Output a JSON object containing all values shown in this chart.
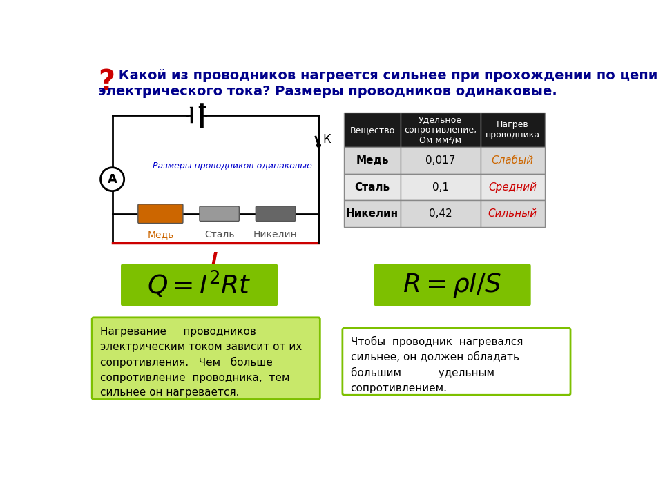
{
  "bg_color": "#ffffff",
  "title_question": "?",
  "title_text_line1": " Какой из проводников нагреется сильнее при прохождении по цепи",
  "title_text_line2": "электрического тока? Размеры проводников одинаковые.",
  "title_color": "#00008B",
  "question_color": "#cc0000",
  "circuit_label": "Размеры проводников одинаковые.",
  "circuit_label_color": "#0000cc",
  "conductor_labels": [
    "Медь",
    "Сталь",
    "Никелин"
  ],
  "conductor_colors": [
    "#cc6600",
    "#999999",
    "#666666"
  ],
  "current_label": "I",
  "current_color": "#cc0000",
  "ammeter_label": "А",
  "key_label": "К",
  "table_header_bg": "#1a1a1a",
  "table_header_color": "#ffffff",
  "table_col1": "Вещество",
  "table_col2": "Удельное\nсопротивление,\nОм мм²/м",
  "table_col3": "Нагрев\nпроводника",
  "table_rows": [
    [
      "Медь",
      "0,017",
      "Слабый"
    ],
    [
      "Сталь",
      "0,1",
      "Средний"
    ],
    [
      "Никелин",
      "0,42",
      "Сильный"
    ]
  ],
  "table_heat_colors": [
    "#cc6600",
    "#cc0000",
    "#cc0000"
  ],
  "row_bg_even": "#d8d8d8",
  "row_bg_odd": "#e8e8e8",
  "formula_bg": "#7dc000",
  "formula_color": "#000000",
  "box1_text": "Нагревание     проводников\nэлектрическим током зависит от их\nсопротивления.   Чем   больше\nсопротивление  проводника,  тем\nсильнее он нагревается.",
  "box2_text": "Чтобы  проводник  нагревался\nсильнее, он должен обладать\nбольшим           удельным\nсопротивлением.",
  "box1_bg": "#c8e86a",
  "box2_bg": "#ffffff",
  "box_border": "#7dc000",
  "wire_color": "#000000",
  "red_wire_color": "#cc0000"
}
